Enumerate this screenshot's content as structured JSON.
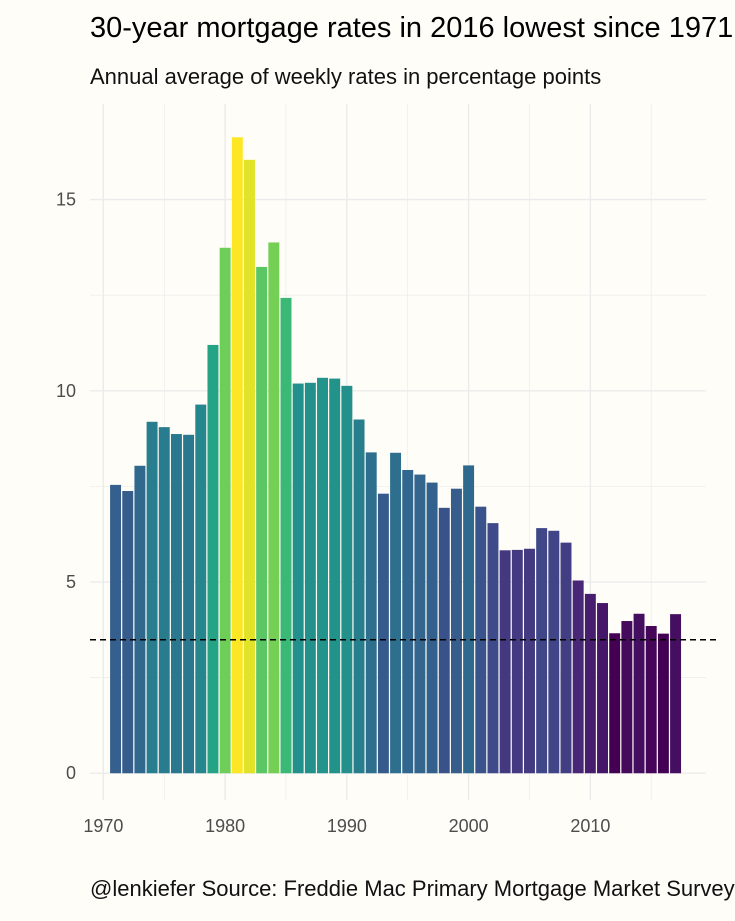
{
  "chart_data": {
    "type": "bar",
    "title": "30-year mortgage rates in 2016 lowest since 1971",
    "subtitle": "Annual average of weekly rates in percentage points",
    "caption": "@lenkiefer Source: Freddie Mac Primary Mortgage Market Survey",
    "xlabel": "",
    "ylabel": "",
    "x": [
      1971,
      1972,
      1973,
      1974,
      1975,
      1976,
      1977,
      1978,
      1979,
      1980,
      1981,
      1982,
      1983,
      1984,
      1985,
      1986,
      1987,
      1988,
      1989,
      1990,
      1991,
      1992,
      1993,
      1994,
      1995,
      1996,
      1997,
      1998,
      1999,
      2000,
      2001,
      2002,
      2003,
      2004,
      2005,
      2006,
      2007,
      2008,
      2009,
      2010,
      2011,
      2012,
      2013,
      2014,
      2015,
      2016,
      2017
    ],
    "values": [
      7.54,
      7.38,
      8.04,
      9.19,
      9.05,
      8.87,
      8.85,
      9.64,
      11.2,
      13.74,
      16.63,
      16.04,
      13.24,
      13.88,
      12.43,
      10.19,
      10.21,
      10.34,
      10.32,
      10.13,
      9.25,
      8.39,
      7.31,
      8.38,
      7.93,
      7.81,
      7.6,
      6.94,
      7.44,
      8.05,
      6.97,
      6.54,
      5.83,
      5.84,
      5.87,
      6.41,
      6.34,
      6.03,
      5.04,
      4.69,
      4.45,
      3.66,
      3.98,
      4.17,
      3.85,
      3.65,
      4.16
    ],
    "reference_line": {
      "value": 3.49,
      "style": "dashed"
    },
    "x_ticks": [
      1970,
      1980,
      1990,
      2000,
      2010
    ],
    "y_ticks": [
      0,
      5,
      10,
      15
    ],
    "xlim": [
      1968.9,
      2019.5
    ],
    "ylim": [
      -0.7,
      17.5
    ],
    "colormap": "viridis",
    "grid": true,
    "legend": "none",
    "colors": {
      "background": "#fffdf7",
      "grid": "#ebebeb",
      "reference_line": "#000000"
    }
  }
}
